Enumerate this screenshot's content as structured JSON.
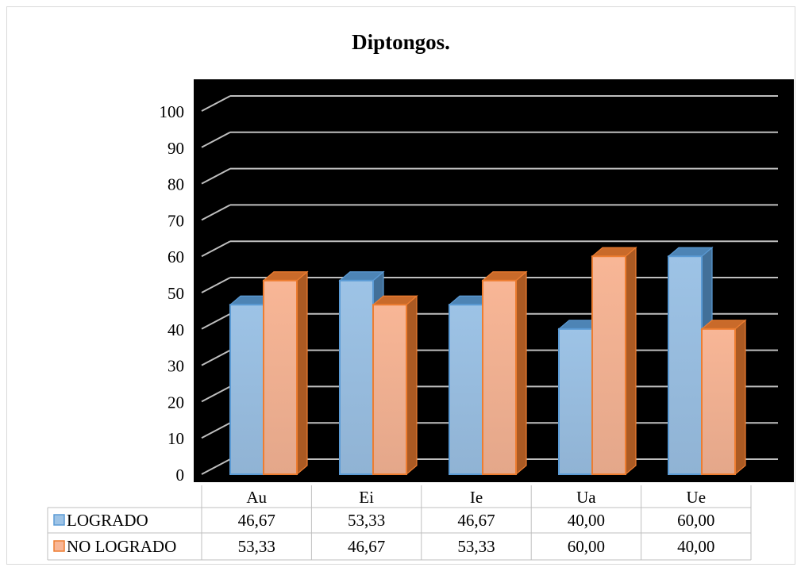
{
  "chart_data": {
    "type": "bar",
    "title": "Diptongos.",
    "categories": [
      "Au",
      "Ei",
      "Ie",
      "Ua",
      "Ue"
    ],
    "ylim": [
      0,
      100
    ],
    "yticks": [
      0,
      10,
      20,
      30,
      40,
      50,
      60,
      70,
      80,
      90,
      100
    ],
    "grid": true,
    "legend": "data-table",
    "series": [
      {
        "name": "LOGRADO",
        "values": [
          46.67,
          53.33,
          46.67,
          40.0,
          60.0
        ],
        "labels": [
          "46,67",
          "53,33",
          "46,67",
          "40,00",
          "60,00"
        ],
        "color": "#9dc3e6",
        "edge": "#5b9bd5"
      },
      {
        "name": "NO LOGRADO",
        "values": [
          53.33,
          46.67,
          53.33,
          60.0,
          40.0
        ],
        "labels": [
          "53,33",
          "46,67",
          "53,33",
          "60,00",
          "40,00"
        ],
        "color": "#f8b696",
        "edge": "#ed7d31"
      }
    ],
    "plot_background": "#000000",
    "gridline_color": "#bfbfbf"
  }
}
